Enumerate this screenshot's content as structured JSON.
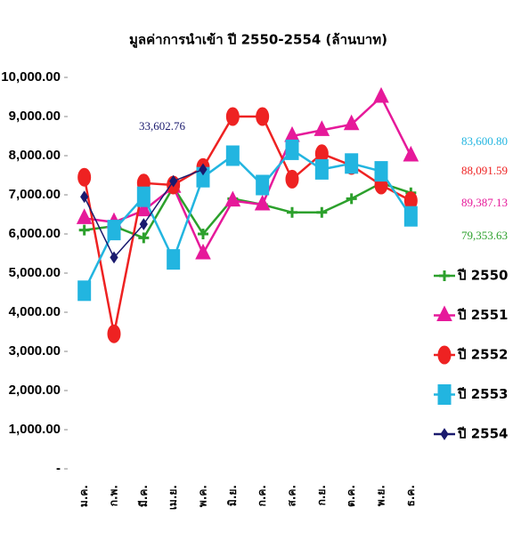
{
  "chart_data": {
    "type": "line",
    "title": "มูลค่าการนำเข้า ปี 2550-2554 (ล้านบาท)",
    "categories": [
      "ม.ค.",
      "ก.พ.",
      "มี.ค.",
      "เม.ย.",
      "พ.ค.",
      "มิ.ย.",
      "ก.ค.",
      "ส.ค.",
      "ก.ย.",
      "ต.ค.",
      "พ.ย.",
      "ธ.ค."
    ],
    "series": [
      {
        "name": "ปี 2550",
        "color": "#2ca02c",
        "marker": "plus",
        "values": [
          6100,
          6200,
          5900,
          7200,
          6000,
          6900,
          6750,
          6550,
          6550,
          6900,
          7300,
          7050
        ]
      },
      {
        "name": "ปี 2551",
        "color": "#e6199a",
        "marker": "triangle",
        "values": [
          6400,
          6300,
          6600,
          7200,
          5500,
          6850,
          6750,
          8500,
          8650,
          8800,
          9500,
          8000
        ]
      },
      {
        "name": "ปี 2552",
        "color": "#ee2222",
        "marker": "circle",
        "values": [
          7450,
          3450,
          7300,
          7250,
          7700,
          9000,
          9000,
          7400,
          8050,
          7750,
          7250,
          6850
        ]
      },
      {
        "name": "ปี 2553",
        "color": "#22b5e0",
        "marker": "square",
        "values": [
          4550,
          6100,
          6950,
          5350,
          7450,
          8000,
          7250,
          8150,
          7650,
          7800,
          7600,
          6450
        ]
      },
      {
        "name": "ปี 2554",
        "color": "#1a1a6e",
        "marker": "diamond",
        "values": [
          6950,
          5400,
          6250,
          7350,
          7650,
          null,
          null,
          null,
          null,
          null,
          null,
          null
        ]
      }
    ],
    "annotations": [
      {
        "text": "33,602.76",
        "color": "#1a1a6e"
      },
      {
        "text": "83,600.80",
        "color": "#22b5e0"
      },
      {
        "text": "88,091.59",
        "color": "#ee2222"
      },
      {
        "text": "89,387.13",
        "color": "#e6199a"
      },
      {
        "text": "79,353.63",
        "color": "#2ca02c"
      }
    ],
    "ylim": [
      0,
      10000
    ],
    "yticks": [
      {
        "value": 0,
        "label": "-"
      },
      {
        "value": 1000,
        "label": "1,000.00"
      },
      {
        "value": 2000,
        "label": "2,000.00"
      },
      {
        "value": 3000,
        "label": "3,000.00"
      },
      {
        "value": 4000,
        "label": "4,000.00"
      },
      {
        "value": 5000,
        "label": "5,000.00"
      },
      {
        "value": 6000,
        "label": "6,000.00"
      },
      {
        "value": 7000,
        "label": "7,000.00"
      },
      {
        "value": 8000,
        "label": "8,000.00"
      },
      {
        "value": 9000,
        "label": "9,000.00"
      },
      {
        "value": 10000,
        "label": "10,000.00"
      }
    ],
    "grid": false
  }
}
